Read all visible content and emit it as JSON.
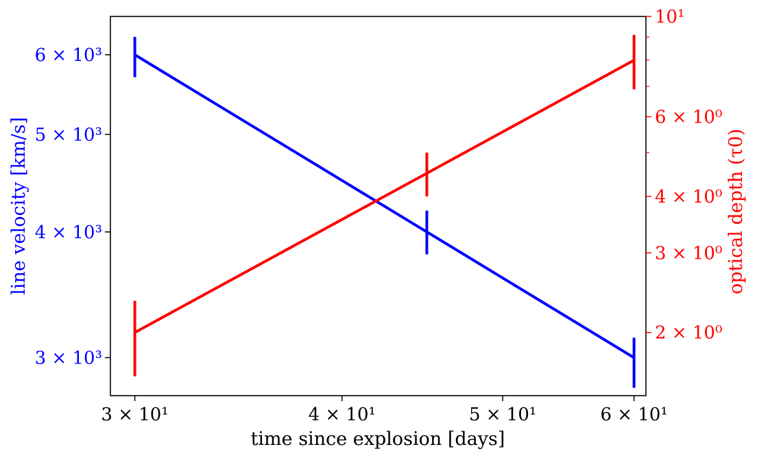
{
  "chart_data": {
    "type": "line",
    "xlabel": "time since explosion [days]",
    "ylabel_left": "line velocity [km/s]",
    "ylabel_right": "optical depth (τ0)",
    "x_scale": "log",
    "y_left_scale": "log",
    "y_right_scale": "log",
    "xlim": [
      29.0,
      61.0
    ],
    "ylim_left": [
      2750,
      6550
    ],
    "ylim_right": [
      1.45,
      10.0
    ],
    "grid": false,
    "x_ticks": [
      {
        "value": 30,
        "label": "3 × 10¹"
      },
      {
        "value": 40,
        "label": "4 × 10¹"
      },
      {
        "value": 50,
        "label": "5 × 10¹"
      },
      {
        "value": 60,
        "label": "6 × 10¹"
      }
    ],
    "y_left_ticks": [
      {
        "value": 3000,
        "label": "3 × 10³"
      },
      {
        "value": 4000,
        "label": "4 × 10³"
      },
      {
        "value": 5000,
        "label": "5 × 10³"
      },
      {
        "value": 6000,
        "label": "6 × 10³"
      }
    ],
    "y_right_ticks": [
      {
        "value": 2,
        "label": "2 × 10⁰"
      },
      {
        "value": 3,
        "label": "3 × 10⁰"
      },
      {
        "value": 4,
        "label": "4 × 10⁰"
      },
      {
        "value": 6,
        "label": "6 × 10⁰"
      },
      {
        "value": 10,
        "label": "10¹"
      }
    ],
    "y_right_minor_ticks": [
      5,
      7,
      8,
      9
    ],
    "series": [
      {
        "axis": "left",
        "color": "#0000ff",
        "x": [
          30,
          45,
          60
        ],
        "y": [
          6000,
          4000,
          3000
        ],
        "err_low": [
          5700,
          3800,
          2800
        ],
        "err_high": [
          6250,
          4200,
          3140
        ]
      },
      {
        "axis": "right",
        "color": "#ff0000",
        "x": [
          30,
          45,
          60
        ],
        "y": [
          2.0,
          4.5,
          8.0
        ],
        "err_low": [
          1.6,
          4.0,
          6.9
        ],
        "err_high": [
          2.35,
          5.0,
          9.1
        ]
      }
    ],
    "colors": {
      "left_axis": "#0000ff",
      "right_axis": "#ff0000",
      "frame": "#000000"
    }
  }
}
